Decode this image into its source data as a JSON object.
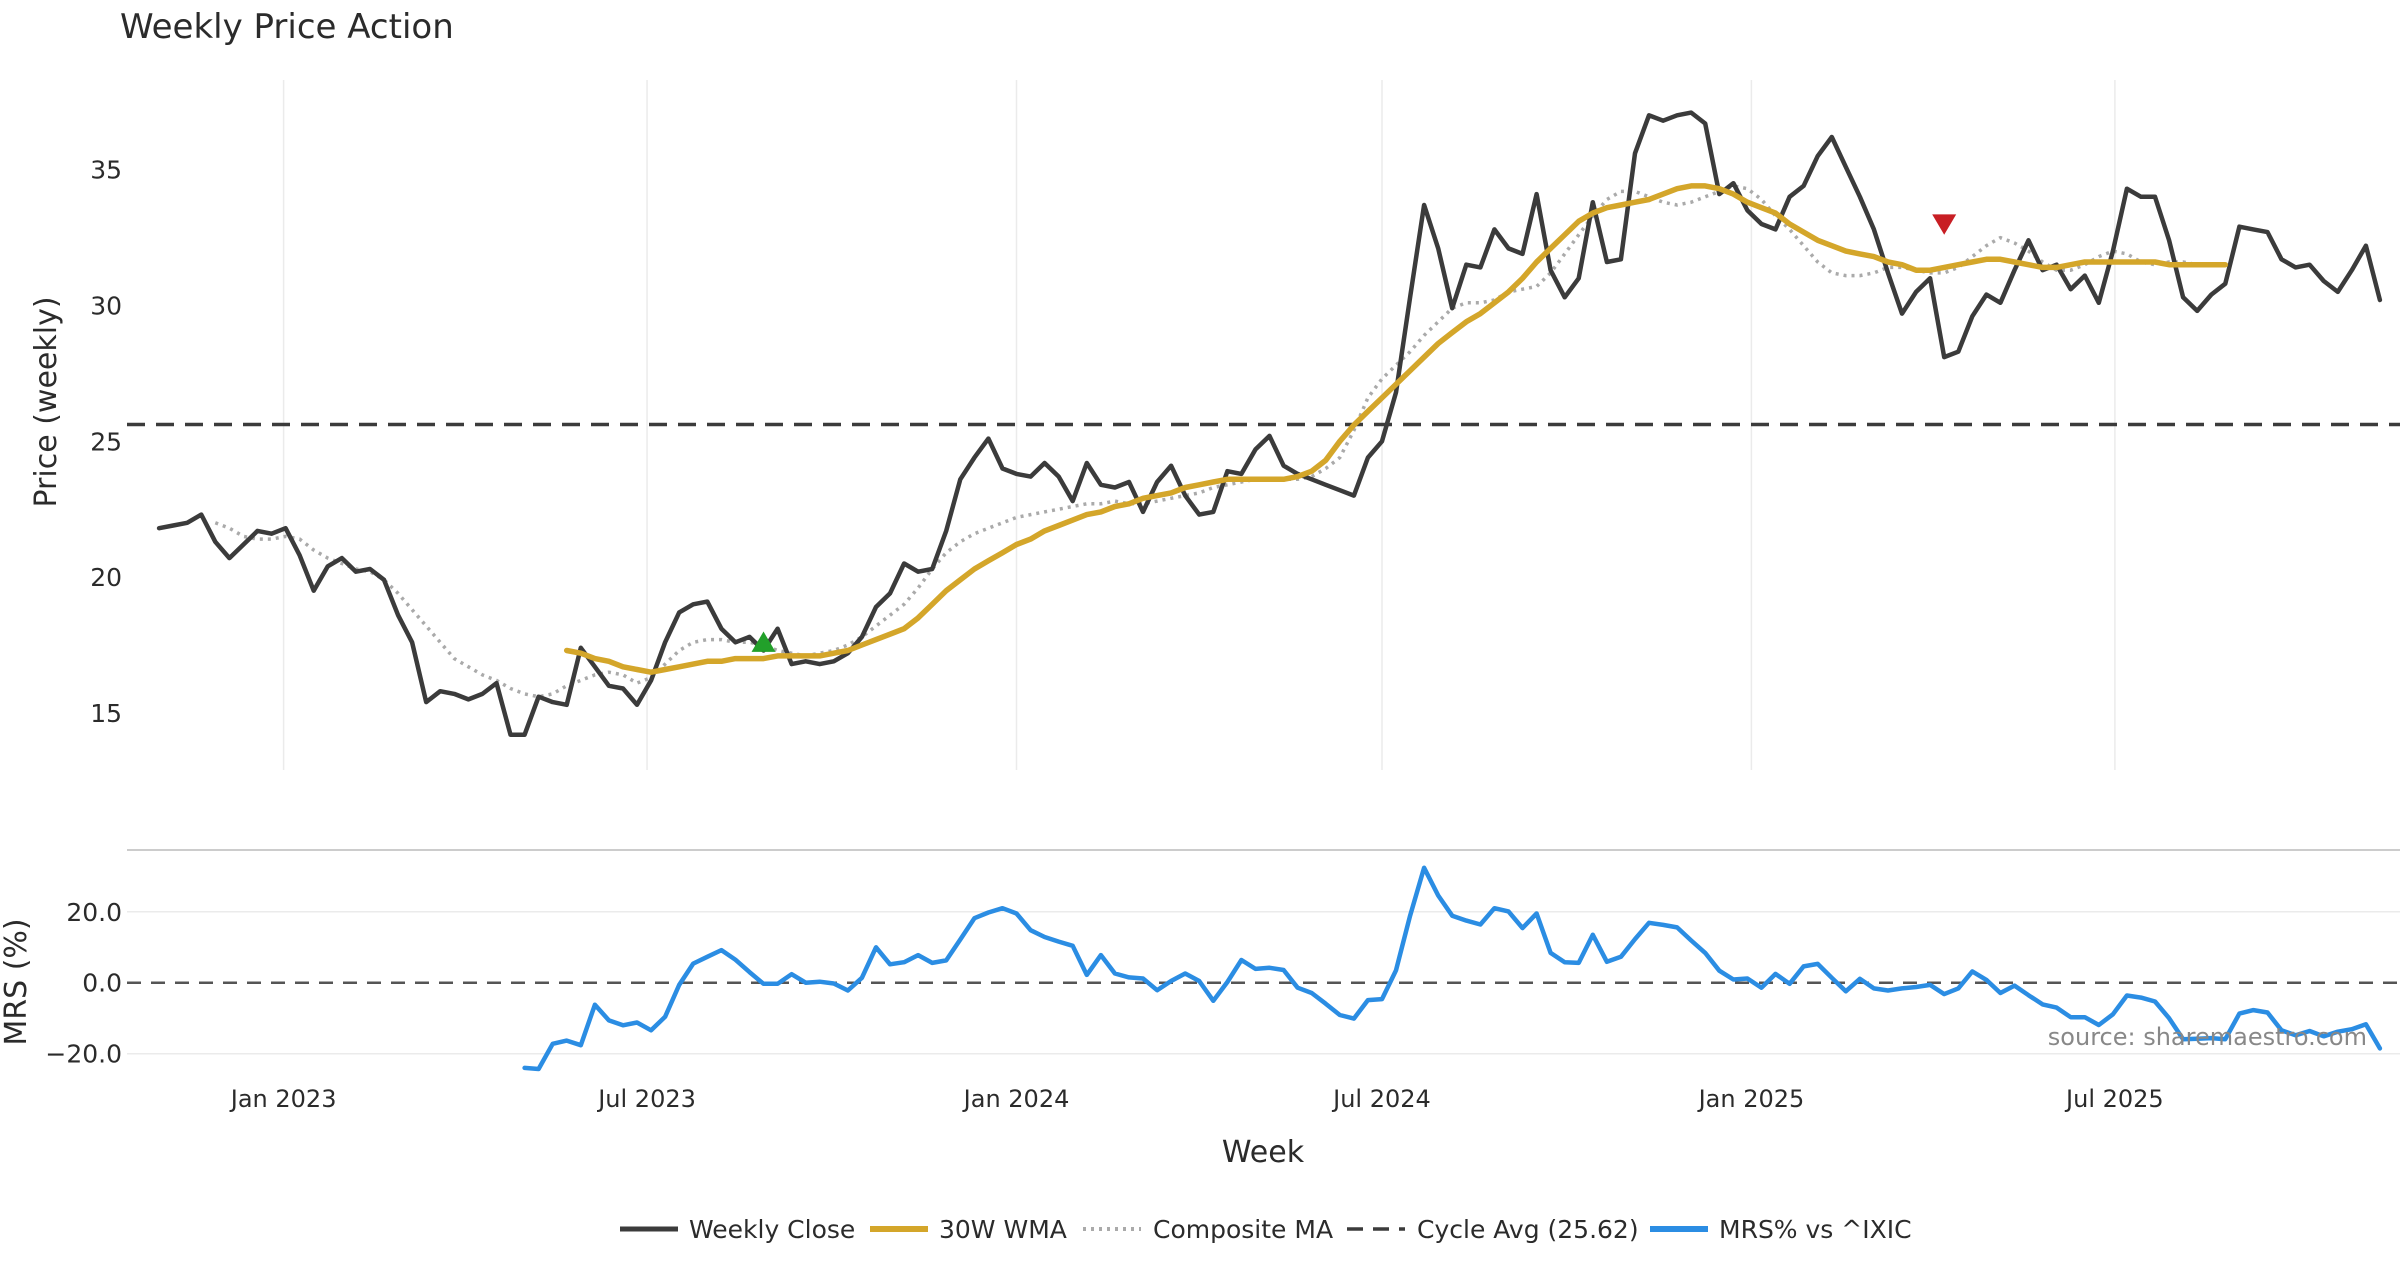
{
  "chart_data": [
    {
      "type": "line",
      "title": "Weekly Price Action",
      "ylabel": "Price (weekly)",
      "xlabel": "",
      "xlim": [
        "2022-10-15",
        "2025-11-20"
      ],
      "ylim": [
        12.9,
        38.3
      ],
      "yticks": [
        15,
        20,
        25,
        30,
        35
      ],
      "grid": true,
      "x_weekly_start": "2022-10-31",
      "series": [
        {
          "name": "Weekly Close",
          "color": "#3b3b3b",
          "style": "solid",
          "values": [
            21.8,
            21.9,
            22.0,
            22.3,
            21.3,
            20.7,
            21.2,
            21.7,
            21.6,
            21.8,
            20.8,
            19.5,
            20.4,
            20.7,
            20.2,
            20.3,
            19.9,
            18.6,
            17.6,
            15.4,
            15.8,
            15.7,
            15.5,
            15.7,
            16.1,
            14.2,
            14.2,
            15.6,
            15.4,
            15.3,
            17.4,
            16.7,
            16.0,
            15.9,
            15.3,
            16.2,
            17.6,
            18.7,
            19.0,
            19.1,
            18.1,
            17.6,
            17.8,
            17.3,
            18.1,
            16.8,
            16.9,
            16.8,
            16.9,
            17.2,
            17.8,
            18.9,
            19.4,
            20.5,
            20.2,
            20.3,
            21.7,
            23.6,
            24.4,
            25.1,
            24.0,
            23.8,
            23.7,
            24.2,
            23.7,
            22.8,
            24.2,
            23.4,
            23.3,
            23.5,
            22.4,
            23.5,
            24.1,
            23.0,
            22.3,
            22.4,
            23.9,
            23.8,
            24.7,
            25.2,
            24.1,
            23.8,
            23.6,
            23.4,
            23.2,
            23.0,
            24.4,
            25.0,
            26.8,
            30.3,
            33.7,
            32.1,
            29.9,
            31.5,
            31.4,
            32.8,
            32.1,
            31.9,
            34.1,
            31.3,
            30.3,
            31.0,
            33.8,
            31.6,
            31.7,
            35.6,
            37.0,
            36.8,
            37.0,
            37.1,
            36.7,
            34.1,
            34.5,
            33.5,
            33.0,
            32.8,
            34.0,
            34.4,
            35.5,
            36.2,
            35.1,
            34.0,
            32.8,
            31.2,
            29.7,
            30.5,
            31.0,
            28.1,
            28.3,
            29.6,
            30.4,
            30.1,
            31.3,
            32.4,
            31.3,
            31.5,
            30.6,
            31.1,
            30.1,
            32.0,
            34.3,
            34.0,
            34.0,
            32.4,
            30.3,
            29.8,
            30.4,
            30.8,
            32.9,
            32.8,
            32.7,
            31.7,
            31.4,
            31.5,
            30.9,
            30.5,
            31.3,
            32.2,
            30.2
          ]
        },
        {
          "name": "30W WMA",
          "color": "#d4a62a",
          "style": "solid",
          "start_index": 29,
          "values": [
            17.3,
            17.2,
            17.0,
            16.9,
            16.7,
            16.6,
            16.5,
            16.6,
            16.7,
            16.8,
            16.9,
            16.9,
            17.0,
            17.0,
            17.0,
            17.1,
            17.1,
            17.1,
            17.1,
            17.2,
            17.3,
            17.5,
            17.7,
            17.9,
            18.1,
            18.5,
            19.0,
            19.5,
            19.9,
            20.3,
            20.6,
            20.9,
            21.2,
            21.4,
            21.7,
            21.9,
            22.1,
            22.3,
            22.4,
            22.6,
            22.7,
            22.9,
            23.0,
            23.1,
            23.3,
            23.4,
            23.5,
            23.6,
            23.6,
            23.6,
            23.6,
            23.6,
            23.7,
            23.9,
            24.3,
            25.0,
            25.6,
            26.1,
            26.6,
            27.1,
            27.6,
            28.1,
            28.6,
            29.0,
            29.4,
            29.7,
            30.1,
            30.5,
            31.0,
            31.6,
            32.1,
            32.6,
            33.1,
            33.4,
            33.6,
            33.7,
            33.8,
            33.9,
            34.1,
            34.3,
            34.4,
            34.4,
            34.3,
            34.1,
            33.8,
            33.6,
            33.4,
            33.0,
            32.7,
            32.4,
            32.2,
            32.0,
            31.9,
            31.8,
            31.6,
            31.5,
            31.3,
            31.3,
            31.4,
            31.5,
            31.6,
            31.7,
            31.7,
            31.6,
            31.5,
            31.4,
            31.4,
            31.5,
            31.6,
            31.6,
            31.6,
            31.6,
            31.6,
            31.6,
            31.5,
            31.5,
            31.5,
            31.5,
            31.5
          ]
        },
        {
          "name": "Composite MA",
          "color": "#aaaaaa",
          "style": "dotted",
          "start_index": 4,
          "values": [
            22.0,
            21.8,
            21.5,
            21.4,
            21.4,
            21.5,
            21.4,
            21.0,
            20.7,
            20.5,
            20.3,
            20.2,
            19.9,
            19.4,
            18.8,
            18.2,
            17.6,
            17.0,
            16.7,
            16.4,
            16.2,
            15.9,
            15.7,
            15.6,
            15.7,
            16.0,
            16.2,
            16.4,
            16.5,
            16.4,
            16.1,
            16.3,
            16.8,
            17.3,
            17.6,
            17.7,
            17.7,
            17.6,
            17.6,
            17.5,
            17.3,
            17.2,
            17.1,
            17.2,
            17.3,
            17.5,
            17.8,
            18.2,
            18.6,
            19.0,
            19.6,
            20.3,
            20.9,
            21.3,
            21.6,
            21.8,
            22.0,
            22.2,
            22.3,
            22.4,
            22.5,
            22.6,
            22.7,
            22.7,
            22.8,
            22.7,
            22.7,
            22.8,
            22.9,
            23.0,
            23.1,
            23.3,
            23.4,
            23.5,
            23.6,
            23.6,
            23.6,
            23.6,
            23.7,
            24.0,
            24.4,
            25.4,
            26.6,
            27.3,
            27.8,
            28.3,
            28.9,
            29.4,
            29.9,
            30.1,
            30.1,
            30.2,
            30.5,
            30.6,
            30.7,
            31.2,
            31.9,
            32.6,
            33.3,
            33.9,
            34.2,
            34.2,
            34.0,
            33.8,
            33.7,
            33.8,
            34.0,
            34.2,
            34.4,
            34.3,
            33.9,
            33.3,
            32.8,
            32.2,
            31.6,
            31.2,
            31.1,
            31.1,
            31.2,
            31.4,
            31.4,
            31.3,
            31.2,
            31.2,
            31.4,
            31.8,
            32.2,
            32.5,
            32.3,
            32.0,
            31.6,
            31.3,
            31.3,
            31.5,
            31.8,
            32.0,
            31.9,
            31.6,
            31.5,
            31.6,
            31.6,
            31.5
          ]
        },
        {
          "name": "Cycle Avg (25.62)",
          "color": "#3b3b3b",
          "style": "dashed",
          "value": 25.62
        }
      ],
      "markers": [
        {
          "type": "buy",
          "shape": "triangle-up",
          "color": "#22a02a",
          "x": "2023-08-28",
          "y": 17.6
        },
        {
          "type": "sell",
          "shape": "triangle-down",
          "color": "#c81e24",
          "x": "2025-04-07",
          "y": 33.0
        }
      ]
    },
    {
      "type": "line",
      "title": "",
      "ylabel": "MRS (%)",
      "xlabel": "Week",
      "xlim": [
        "2022-10-15",
        "2025-11-20"
      ],
      "ylim": [
        -26,
        36
      ],
      "yticks": [
        20.0,
        0.0,
        -20.0
      ],
      "ytick_labels": [
        "20.0",
        "0.0",
        "−20.0"
      ],
      "xticks": [
        "2023-01-01",
        "2023-07-01",
        "2024-01-01",
        "2024-07-01",
        "2025-01-01",
        "2025-07-01"
      ],
      "xtick_labels": [
        "Jan 2023",
        "Jul 2023",
        "Jan 2024",
        "Jul 2024",
        "Jan 2025",
        "Jul 2025"
      ],
      "grid": true,
      "reference_line": {
        "value": 0,
        "style": "dashed",
        "color": "#555555"
      },
      "series": [
        {
          "name": "MRS% vs ^IXIC",
          "color": "#2b8de3",
          "style": "solid",
          "start_index": 26,
          "values": [
            -24.0,
            -24.3,
            -17.2,
            -16.3,
            -17.6,
            -6.2,
            -10.6,
            -12.0,
            -11.2,
            -13.4,
            -9.6,
            -0.6,
            5.4,
            7.3,
            9.2,
            6.5,
            3.0,
            -0.3,
            -0.3,
            2.4,
            0.0,
            0.3,
            -0.2,
            -2.2,
            1.4,
            10.0,
            5.2,
            5.8,
            7.8,
            5.6,
            6.3,
            12.2,
            18.2,
            19.8,
            21.0,
            19.5,
            14.8,
            12.9,
            11.6,
            10.4,
            2.2,
            7.8,
            2.6,
            1.5,
            1.2,
            -2.1,
            0.5,
            2.6,
            0.5,
            -5.1,
            0.2,
            6.4,
            3.9,
            4.2,
            3.6,
            -1.4,
            -2.9,
            -5.9,
            -9.1,
            -10.1,
            -4.9,
            -4.6,
            3.5,
            18.9,
            32.4,
            24.6,
            18.9,
            17.5,
            16.4,
            21.0,
            20.1,
            15.4,
            19.5,
            8.4,
            5.8,
            5.6,
            13.5,
            5.9,
            7.3,
            12.3,
            16.9,
            16.3,
            15.6,
            11.9,
            8.4,
            3.4,
            0.9,
            1.2,
            -1.4,
            2.5,
            -0.3,
            4.6,
            5.3,
            1.4,
            -2.4,
            1.1,
            -1.6,
            -2.2,
            -1.6,
            -1.2,
            -0.6,
            -3.2,
            -1.6,
            3.2,
            0.8,
            -2.9,
            -0.8,
            -3.5,
            -6.1,
            -7.0,
            -9.7,
            -9.7,
            -11.9,
            -8.9,
            -3.6,
            -4.2,
            -5.3,
            -10.0,
            -15.9,
            -15.8,
            -15.6,
            -15.9,
            -8.7,
            -7.7,
            -8.4,
            -13.4,
            -14.8,
            -13.6,
            -15.1,
            -13.8,
            -13.1,
            -11.7,
            -18.5
          ]
        }
      ],
      "annotation": "source: sharemaestro.com"
    }
  ]
}
